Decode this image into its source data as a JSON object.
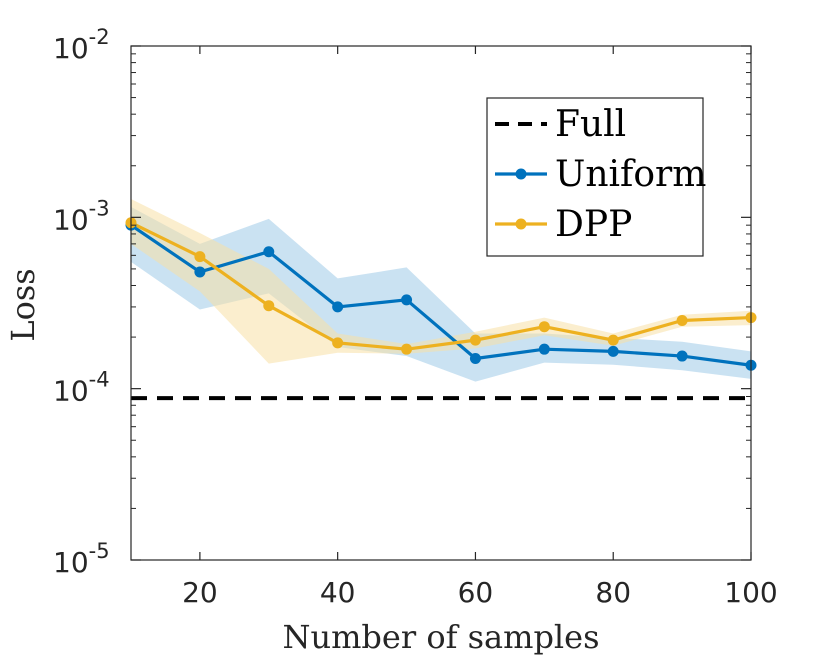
{
  "chart_data": {
    "type": "line",
    "xlabel": "Number of samples",
    "ylabel": "Loss",
    "xlim": [
      10,
      100
    ],
    "ylim": [
      1e-05,
      0.01
    ],
    "yscale": "log",
    "grid": false,
    "legend_position": "top-right",
    "x_ticks": [
      20,
      40,
      60,
      80,
      100
    ],
    "y_ticks": [
      {
        "value": 1e-05,
        "base": "10",
        "exp": "-5"
      },
      {
        "value": 0.0001,
        "base": "10",
        "exp": "-4"
      },
      {
        "value": 0.001,
        "base": "10",
        "exp": "-3"
      },
      {
        "value": 0.01,
        "base": "10",
        "exp": "-2"
      }
    ],
    "x": [
      10,
      20,
      30,
      40,
      50,
      60,
      70,
      80,
      90,
      100
    ],
    "series": [
      {
        "name": "Full",
        "style": "dashed",
        "color": "#000000",
        "constant": 8.8e-05
      },
      {
        "name": "Uniform",
        "style": "solid",
        "color": "#0072BD",
        "band_color": "#9ecae8",
        "values": [
          0.0009,
          0.00048,
          0.00063,
          0.0003,
          0.00033,
          0.00015,
          0.00017,
          0.000165,
          0.000155,
          0.000137
        ],
        "lower": [
          0.00055,
          0.00029,
          0.00036,
          0.000175,
          0.000155,
          0.00011,
          0.000142,
          0.000138,
          0.000128,
          0.000114
        ],
        "upper": [
          0.00115,
          0.0007,
          0.00098,
          0.00044,
          0.00051,
          0.00021,
          0.00021,
          0.000198,
          0.000188,
          0.000165
        ]
      },
      {
        "name": "DPP",
        "style": "solid",
        "color": "#EDB120",
        "band_color": "#f7e0a6",
        "values": [
          0.00093,
          0.00059,
          0.000305,
          0.000185,
          0.00017,
          0.000192,
          0.00023,
          0.000192,
          0.00025,
          0.00026
        ],
        "lower": [
          0.0007,
          0.00037,
          0.00014,
          0.000162,
          0.00016,
          0.000172,
          0.000205,
          0.000178,
          0.00023,
          0.000235
        ],
        "upper": [
          0.00128,
          0.00081,
          0.0005,
          0.00021,
          0.000182,
          0.000215,
          0.00026,
          0.00021,
          0.00027,
          0.000285
        ]
      }
    ]
  }
}
